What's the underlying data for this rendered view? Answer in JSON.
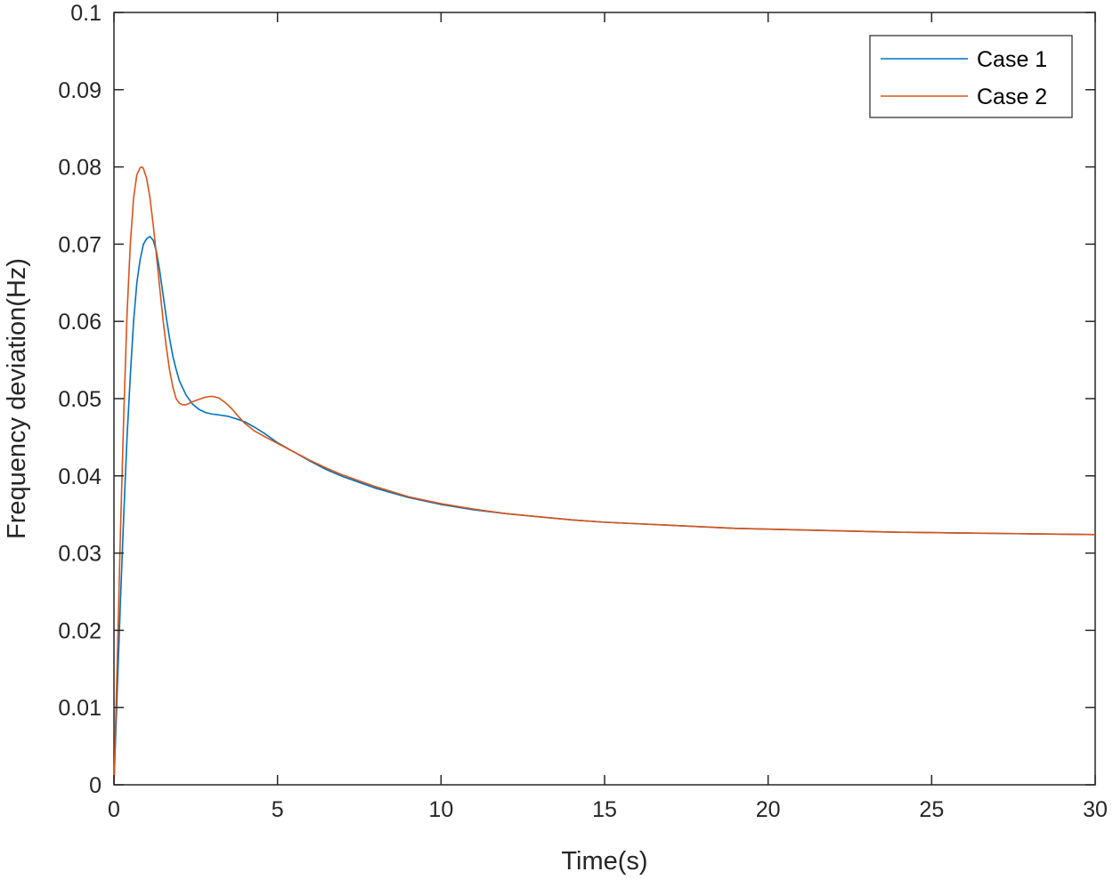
{
  "chart_data": {
    "type": "line",
    "title": "",
    "xlabel": "Time(s)",
    "ylabel": "Frequency deviation(Hz)",
    "xlim": [
      0,
      30
    ],
    "ylim": [
      0,
      0.1
    ],
    "grid": false,
    "legend_position": "top-right",
    "x_ticks": [
      "0",
      "5",
      "10",
      "15",
      "20",
      "25",
      "30"
    ],
    "y_ticks": [
      "0",
      "0.01",
      "0.02",
      "0.03",
      "0.04",
      "0.05",
      "0.06",
      "0.07",
      "0.08",
      "0.09",
      "0.1"
    ],
    "series": [
      {
        "name": "Case 1",
        "color": "#0072BD",
        "x": [
          0,
          0.1,
          0.2,
          0.3,
          0.4,
          0.5,
          0.6,
          0.7,
          0.8,
          0.9,
          1.0,
          1.1,
          1.2,
          1.3,
          1.4,
          1.5,
          1.6,
          1.7,
          1.8,
          1.9,
          2.0,
          2.2,
          2.4,
          2.6,
          2.8,
          3.0,
          3.2,
          3.5,
          3.8,
          4.0,
          4.3,
          4.6,
          5.0,
          5.5,
          6.0,
          6.5,
          7.0,
          8.0,
          9.0,
          10.0,
          11.0,
          12.0,
          13.0,
          14.0,
          15.0,
          16.0,
          17.0,
          18.0,
          19.0,
          20.0,
          22.0,
          24.0,
          26.0,
          28.0,
          30.0
        ],
        "y": [
          0,
          0.012,
          0.024,
          0.035,
          0.045,
          0.053,
          0.06,
          0.065,
          0.068,
          0.07,
          0.0707,
          0.071,
          0.0705,
          0.069,
          0.0665,
          0.0635,
          0.0605,
          0.0578,
          0.0555,
          0.0538,
          0.0523,
          0.0505,
          0.0493,
          0.0486,
          0.0482,
          0.048,
          0.0479,
          0.0477,
          0.0473,
          0.047,
          0.0463,
          0.0455,
          0.0443,
          0.0431,
          0.0419,
          0.0408,
          0.0399,
          0.0384,
          0.0372,
          0.0363,
          0.0356,
          0.0351,
          0.0347,
          0.0343,
          0.034,
          0.0338,
          0.0336,
          0.0334,
          0.0332,
          0.0331,
          0.0329,
          0.0327,
          0.0326,
          0.0325,
          0.0324
        ]
      },
      {
        "name": "Case 2",
        "color": "#D95319",
        "x": [
          0,
          0.1,
          0.2,
          0.3,
          0.4,
          0.5,
          0.6,
          0.7,
          0.8,
          0.85,
          0.9,
          1.0,
          1.1,
          1.2,
          1.3,
          1.4,
          1.5,
          1.6,
          1.7,
          1.8,
          1.9,
          2.0,
          2.1,
          2.2,
          2.3,
          2.4,
          2.6,
          2.8,
          3.0,
          3.2,
          3.4,
          3.6,
          3.8,
          4.0,
          4.3,
          4.6,
          5.0,
          5.5,
          6.0,
          6.5,
          7.0,
          8.0,
          9.0,
          10.0,
          11.0,
          12.0,
          13.0,
          14.0,
          15.0,
          16.0,
          17.0,
          18.0,
          19.0,
          20.0,
          22.0,
          24.0,
          26.0,
          28.0,
          30.0
        ],
        "y": [
          0,
          0.016,
          0.033,
          0.048,
          0.061,
          0.07,
          0.076,
          0.079,
          0.0799,
          0.08,
          0.0798,
          0.0785,
          0.076,
          0.0725,
          0.0685,
          0.0643,
          0.0602,
          0.0567,
          0.0537,
          0.0515,
          0.05,
          0.0494,
          0.0492,
          0.0492,
          0.0494,
          0.0496,
          0.0499,
          0.0502,
          0.0503,
          0.0501,
          0.0495,
          0.0487,
          0.0477,
          0.0468,
          0.0458,
          0.0451,
          0.0442,
          0.0431,
          0.042,
          0.041,
          0.0401,
          0.0386,
          0.0373,
          0.0364,
          0.0357,
          0.0351,
          0.0347,
          0.0343,
          0.034,
          0.0338,
          0.0336,
          0.0334,
          0.0332,
          0.0331,
          0.0329,
          0.0327,
          0.0326,
          0.0325,
          0.0324
        ]
      }
    ]
  }
}
